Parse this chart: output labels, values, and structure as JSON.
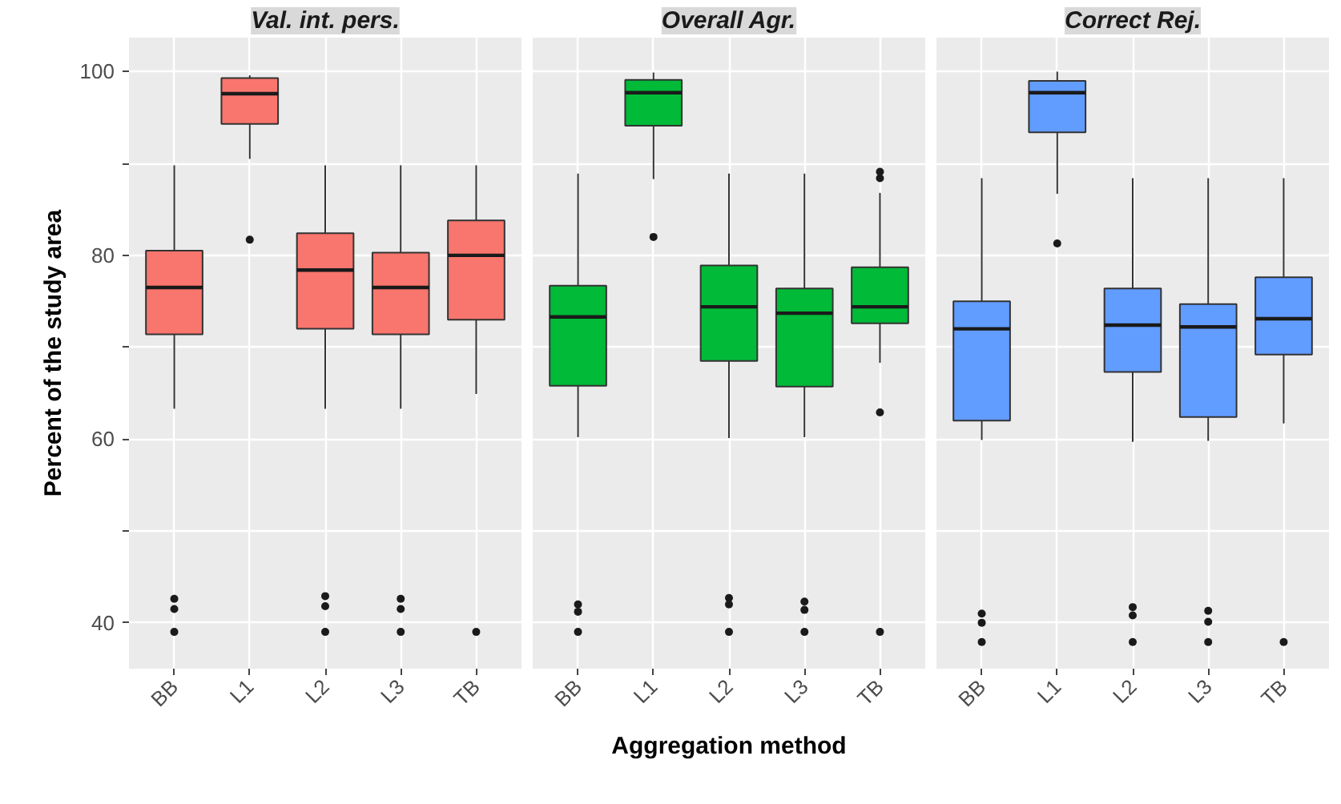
{
  "chart_data": [
    {
      "type": "box",
      "title": "Val. int. pers.",
      "ylabel": "Percent of the study area",
      "categories": [
        "BB",
        "L1",
        "L2",
        "L3",
        "TB"
      ],
      "color": "#f8766d",
      "ylim": [
        35,
        103.7
      ],
      "yticks": [
        40,
        {
          "value": 50,
          "label": null
        },
        60,
        {
          "value": 70,
          "label": null
        },
        80,
        {
          "value": 90,
          "label": null
        },
        100
      ],
      "grid": true,
      "boxes": [
        {
          "low": 63.3,
          "q1": 71.4,
          "median": 76.5,
          "q3": 80.5,
          "high": 89.8,
          "outliers": [
            42.6,
            41.5,
            39.0
          ]
        },
        {
          "low": 90.5,
          "q1": 94.3,
          "median": 97.6,
          "q3": 99.3,
          "high": 99.6,
          "outliers": [
            81.7
          ]
        },
        {
          "low": 63.3,
          "q1": 72.0,
          "median": 78.4,
          "q3": 82.4,
          "high": 89.8,
          "outliers": [
            42.9,
            41.8,
            39.0
          ]
        },
        {
          "low": 63.3,
          "q1": 71.4,
          "median": 76.5,
          "q3": 80.3,
          "high": 89.8,
          "outliers": [
            42.6,
            41.5,
            39.0
          ]
        },
        {
          "low": 64.9,
          "q1": 73.0,
          "median": 80.0,
          "q3": 83.8,
          "high": 89.8,
          "outliers": [
            39.0
          ]
        }
      ]
    },
    {
      "type": "box",
      "title": "Overall Agr.",
      "xlabel": "Aggregation method",
      "categories": [
        "BB",
        "L1",
        "L2",
        "L3",
        "TB"
      ],
      "color": "#00ba38",
      "ylim": [
        35,
        103.7
      ],
      "yticks": [
        40,
        {
          "value": 50,
          "label": null
        },
        60,
        {
          "value": 70,
          "label": null
        },
        80,
        {
          "value": 90,
          "label": null
        },
        100
      ],
      "grid": true,
      "tick_labels": "x",
      "boxes": [
        {
          "low": 60.2,
          "q1": 65.8,
          "median": 73.3,
          "q3": 76.7,
          "high": 88.9,
          "outliers": [
            42.0,
            41.2,
            39.0
          ]
        },
        {
          "low": 88.3,
          "q1": 94.1,
          "median": 97.7,
          "q3": 99.1,
          "high": 99.9,
          "outliers": [
            82.0
          ]
        },
        {
          "low": 60.1,
          "q1": 68.5,
          "median": 74.4,
          "q3": 78.9,
          "high": 88.9,
          "outliers": [
            42.7,
            42.0,
            39.0
          ]
        },
        {
          "low": 60.2,
          "q1": 65.7,
          "median": 73.7,
          "q3": 76.4,
          "high": 88.9,
          "outliers": [
            42.3,
            41.4,
            39.0
          ]
        },
        {
          "low": 68.3,
          "q1": 72.6,
          "median": 74.4,
          "q3": 78.7,
          "high": 86.8,
          "outliers": [
            89.1,
            88.4,
            62.9,
            39.0
          ]
        }
      ]
    },
    {
      "type": "box",
      "title": "Correct Rej.",
      "categories": [
        "BB",
        "L1",
        "L2",
        "L3",
        "TB"
      ],
      "color": "#619cff",
      "ylim": [
        35,
        103.7
      ],
      "yticks": [
        40,
        {
          "value": 50,
          "label": null
        },
        60,
        {
          "value": 70,
          "label": null
        },
        80,
        {
          "value": 90,
          "label": null
        },
        100
      ],
      "grid": true,
      "tick_labels": "x",
      "boxes": [
        {
          "low": 59.9,
          "q1": 62.0,
          "median": 72.0,
          "q3": 75.0,
          "high": 88.4,
          "outliers": [
            41.0,
            40.0,
            37.9
          ]
        },
        {
          "low": 86.7,
          "q1": 93.4,
          "median": 97.7,
          "q3": 99.0,
          "high": 100.0,
          "outliers": [
            81.3
          ]
        },
        {
          "low": 59.7,
          "q1": 67.3,
          "median": 72.4,
          "q3": 76.4,
          "high": 88.4,
          "outliers": [
            41.7,
            40.8,
            37.9
          ]
        },
        {
          "low": 59.8,
          "q1": 62.4,
          "median": 72.2,
          "q3": 74.7,
          "high": 88.4,
          "outliers": [
            41.3,
            40.1,
            37.9
          ]
        },
        {
          "low": 61.7,
          "q1": 69.2,
          "median": 73.1,
          "q3": 77.6,
          "high": 88.4,
          "outliers": [
            37.9
          ]
        }
      ]
    }
  ]
}
